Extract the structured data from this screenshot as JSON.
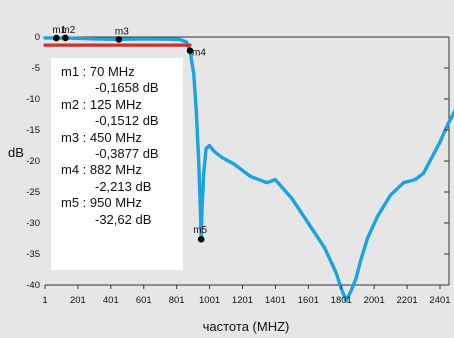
{
  "chart_data": {
    "type": "line",
    "xlabel": "частота (MHZ)",
    "ylabel": "dB",
    "xlim": [
      1,
      2500
    ],
    "ylim": [
      -40,
      0
    ],
    "grid": false,
    "x_ticks": [
      "1",
      "201",
      "401",
      "601",
      "801",
      "1001",
      "1201",
      "1401",
      "1601",
      "1801",
      "2001",
      "2201",
      "2401"
    ],
    "y_ticks": [
      "0",
      "-5",
      "-10",
      "-15",
      "-20",
      "-25",
      "-30",
      "-35",
      "-40"
    ],
    "series": [
      {
        "color": "#1aa3e0",
        "x": [
          1,
          70,
          125,
          300,
          450,
          600,
          750,
          820,
          860,
          882,
          905,
          920,
          935,
          945,
          950,
          955,
          965,
          980,
          1000,
          1030,
          1080,
          1150,
          1250,
          1350,
          1400,
          1500,
          1600,
          1700,
          1770,
          1800,
          1830,
          1860,
          1890,
          1920,
          1960,
          2020,
          2100,
          2180,
          2250,
          2300,
          2350,
          2400,
          2450,
          2500
        ],
        "y": [
          -0.15,
          -0.17,
          -0.15,
          -0.3,
          -0.39,
          -0.3,
          -0.35,
          -0.4,
          -0.8,
          -2.2,
          -6,
          -12,
          -20,
          -28,
          -32.6,
          -28,
          -22,
          -18,
          -17.5,
          -18.5,
          -19.5,
          -20.5,
          -22.5,
          -23.5,
          -23,
          -26,
          -30,
          -34,
          -38,
          -40.5,
          -42.5,
          -41,
          -39,
          -36,
          -32.5,
          -29,
          -25.5,
          -23.5,
          -23,
          -22,
          -19.5,
          -17,
          -14,
          -11.5
        ]
      },
      {
        "color": "#d62d2d",
        "x": [
          1,
          882
        ],
        "y": [
          -1.3,
          -1.3
        ]
      }
    ],
    "markers": [
      {
        "name": "m1",
        "x": 70,
        "y": -0.1658,
        "freq": "70 MHz",
        "value": "-0,1658 dB"
      },
      {
        "name": "m2",
        "x": 125,
        "y": -0.1512,
        "freq": "125 MHz",
        "value": "-0,1512 dB"
      },
      {
        "name": "m3",
        "x": 450,
        "y": -0.3877,
        "freq": "450 MHz",
        "value": "-0,3877 dB"
      },
      {
        "name": "m4",
        "x": 882,
        "y": -2.213,
        "freq": "882 MHz",
        "value": "-2,213 dB"
      },
      {
        "name": "m5",
        "x": 950,
        "y": -32.62,
        "freq": "950 MHz",
        "value": "-32,62 dB"
      }
    ]
  }
}
